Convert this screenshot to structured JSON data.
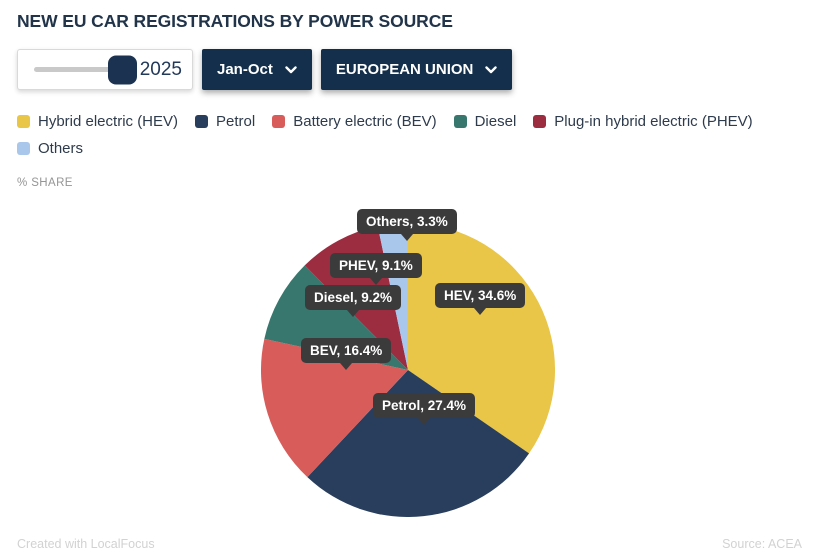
{
  "title": "NEW EU CAR REGISTRATIONS BY POWER SOURCE",
  "controls": {
    "year_slider": {
      "value": "2025"
    },
    "period_dropdown": {
      "value": "Jan-Oct"
    },
    "region_dropdown": {
      "value": "EUROPEAN UNION"
    }
  },
  "axis_label": "% SHARE",
  "chart_data": {
    "type": "pie",
    "title": "NEW EU CAR REGISTRATIONS BY POWER SOURCE",
    "unit": "% share",
    "start_angle_deg": 0,
    "direction": "clockwise",
    "slices": [
      {
        "key": "hev",
        "name": "Hybrid electric (HEV)",
        "label": "HEV, 34.6%",
        "value": 34.6,
        "color": "#e9c548"
      },
      {
        "key": "petrol",
        "name": "Petrol",
        "label": "Petrol, 27.4%",
        "value": 27.4,
        "color": "#293e5c"
      },
      {
        "key": "bev",
        "name": "Battery electric (BEV)",
        "label": "BEV, 16.4%",
        "value": 16.4,
        "color": "#d85c5a"
      },
      {
        "key": "diesel",
        "name": "Diesel",
        "label": "Diesel, 9.2%",
        "value": 9.2,
        "color": "#37776d"
      },
      {
        "key": "phev",
        "name": "Plug-in hybrid electric (PHEV)",
        "label": "PHEV, 9.1%",
        "value": 9.1,
        "color": "#9c2d40"
      },
      {
        "key": "others",
        "name": "Others",
        "label": "Others, 3.3%",
        "value": 3.3,
        "color": "#a9c7ea"
      }
    ]
  },
  "footer": {
    "left": "Created with LocalFocus",
    "right": "Source: ACEA"
  }
}
